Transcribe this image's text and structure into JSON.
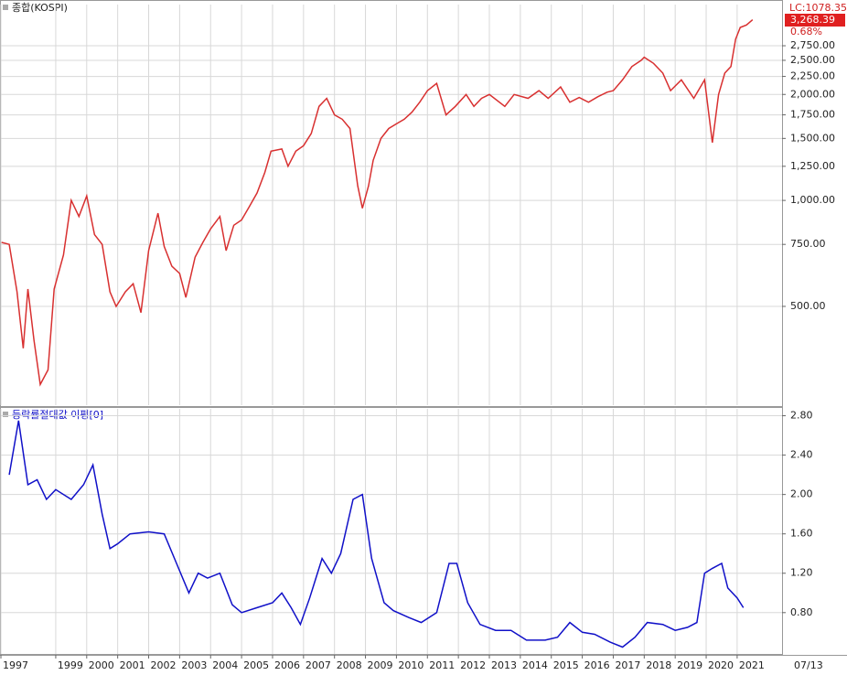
{
  "chart_data": [
    {
      "type": "line",
      "title": "종합(KOSPI)",
      "log_y": true,
      "color": "#d83030",
      "annotations": [
        "LC:1078.35",
        "3,268.39",
        "0.68%"
      ],
      "xlim": [
        1997.23,
        2022.45
      ],
      "ylim": [
        262,
        3600
      ],
      "yticks": [
        {
          "value": 500,
          "label": "500.00"
        },
        {
          "value": 750,
          "label": "750.00"
        },
        {
          "value": 1000,
          "label": "1,000.00"
        },
        {
          "value": 1250,
          "label": "1,250.00"
        },
        {
          "value": 1500,
          "label": "1,500.00"
        },
        {
          "value": 1750,
          "label": "1,750.00"
        },
        {
          "value": 2000,
          "label": "2,000.00"
        },
        {
          "value": 2250,
          "label": "2,250.00"
        },
        {
          "value": 2500,
          "label": "2,500.00"
        },
        {
          "value": 2750,
          "label": "2,750.00"
        }
      ],
      "grid": true,
      "x": [
        1997.25,
        1997.5,
        1997.75,
        1997.95,
        1998.1,
        1998.3,
        1998.5,
        1998.75,
        1998.95,
        1999.25,
        1999.5,
        1999.75,
        2000.0,
        2000.25,
        2000.5,
        2000.75,
        2000.95,
        2001.25,
        2001.5,
        2001.75,
        2002.0,
        2002.3,
        2002.5,
        2002.75,
        2003.0,
        2003.2,
        2003.5,
        2003.75,
        2004.0,
        2004.3,
        2004.5,
        2004.75,
        2005.0,
        2005.25,
        2005.5,
        2005.75,
        2005.95,
        2006.3,
        2006.5,
        2006.75,
        2007.0,
        2007.25,
        2007.5,
        2007.75,
        2008.0,
        2008.25,
        2008.5,
        2008.75,
        2008.9,
        2009.1,
        2009.25,
        2009.5,
        2009.75,
        2010.0,
        2010.25,
        2010.5,
        2010.75,
        2011.0,
        2011.3,
        2011.6,
        2011.9,
        2012.25,
        2012.5,
        2012.75,
        2013.0,
        2013.5,
        2013.8,
        2014.25,
        2014.6,
        2014.9,
        2015.3,
        2015.6,
        2015.9,
        2016.2,
        2016.5,
        2016.8,
        2017.0,
        2017.3,
        2017.6,
        2017.9,
        2018.0,
        2018.3,
        2018.6,
        2018.85,
        2019.2,
        2019.6,
        2019.95,
        2020.2,
        2020.4,
        2020.6,
        2020.8,
        2020.95,
        2021.1,
        2021.3,
        2021.5
      ],
      "values": [
        760,
        750,
        550,
        380,
        560,
        400,
        300,
        330,
        560,
        700,
        1000,
        900,
        1030,
        800,
        750,
        550,
        500,
        550,
        580,
        480,
        720,
        920,
        740,
        650,
        620,
        530,
        690,
        760,
        830,
        900,
        720,
        850,
        880,
        960,
        1050,
        1200,
        1380,
        1400,
        1250,
        1380,
        1430,
        1550,
        1850,
        1950,
        1750,
        1700,
        1600,
        1100,
        950,
        1100,
        1300,
        1500,
        1600,
        1650,
        1700,
        1780,
        1900,
        2050,
        2150,
        1750,
        1850,
        2000,
        1850,
        1950,
        2000,
        1850,
        2000,
        1950,
        2050,
        1950,
        2100,
        1900,
        1960,
        1900,
        1970,
        2030,
        2050,
        2200,
        2400,
        2500,
        2550,
        2450,
        2300,
        2050,
        2200,
        1950,
        2200,
        1460,
        2000,
        2300,
        2400,
        2870,
        3100,
        3150,
        3260
      ]
    },
    {
      "type": "line",
      "title": "등락률절대값 이평[0]",
      "color": "#1010c8",
      "x_end_label": "07/13",
      "xlim": [
        1997.23,
        2022.45
      ],
      "ylim": [
        0.38,
        2.87
      ],
      "xticks": [
        {
          "value": 1997.23,
          "label": "1997"
        },
        1999,
        2000,
        2001,
        2002,
        2003,
        2004,
        2005,
        2006,
        2007,
        2008,
        2009,
        2010,
        2011,
        2012,
        2013,
        2014,
        2015,
        2016,
        2017,
        2018,
        2019,
        2020,
        2021
      ],
      "yticks": [
        {
          "value": 0.8,
          "label": "0.80"
        },
        {
          "value": 1.2,
          "label": "1.20"
        },
        {
          "value": 1.6,
          "label": "1.60"
        },
        {
          "value": 2.0,
          "label": "2.00"
        },
        {
          "value": 2.4,
          "label": "2.40"
        },
        {
          "value": 2.8,
          "label": "2.80"
        }
      ],
      "grid": true,
      "x": [
        1997.5,
        1997.8,
        1998.1,
        1998.4,
        1998.7,
        1999.0,
        1999.5,
        1999.9,
        2000.2,
        2000.5,
        2000.75,
        2001.0,
        2001.4,
        2002.0,
        2002.5,
        2002.9,
        2003.3,
        2003.6,
        2003.9,
        2004.3,
        2004.7,
        2005.0,
        2005.5,
        2006.0,
        2006.3,
        2006.6,
        2006.9,
        2007.2,
        2007.6,
        2007.9,
        2008.2,
        2008.6,
        2008.9,
        2009.2,
        2009.6,
        2009.9,
        2010.4,
        2010.8,
        2011.3,
        2011.7,
        2011.95,
        2012.3,
        2012.7,
        2013.2,
        2013.7,
        2014.2,
        2014.8,
        2015.2,
        2015.6,
        2016.0,
        2016.4,
        2016.9,
        2017.3,
        2017.7,
        2018.1,
        2018.6,
        2019.0,
        2019.4,
        2019.7,
        2019.95,
        2020.2,
        2020.5,
        2020.7,
        2021.0,
        2021.2
      ],
      "values": [
        2.2,
        2.75,
        2.1,
        2.15,
        1.95,
        2.05,
        1.95,
        2.1,
        2.3,
        1.8,
        1.45,
        1.5,
        1.6,
        1.62,
        1.6,
        1.3,
        1.0,
        1.2,
        1.15,
        1.2,
        0.88,
        0.8,
        0.85,
        0.9,
        1.0,
        0.85,
        0.68,
        0.95,
        1.35,
        1.2,
        1.4,
        1.95,
        2.0,
        1.35,
        0.9,
        0.82,
        0.75,
        0.7,
        0.8,
        1.3,
        1.3,
        0.9,
        0.68,
        0.62,
        0.62,
        0.52,
        0.52,
        0.55,
        0.7,
        0.6,
        0.58,
        0.5,
        0.45,
        0.55,
        0.7,
        0.68,
        0.62,
        0.65,
        0.7,
        1.2,
        1.25,
        1.3,
        1.05,
        0.95,
        0.85
      ]
    }
  ]
}
